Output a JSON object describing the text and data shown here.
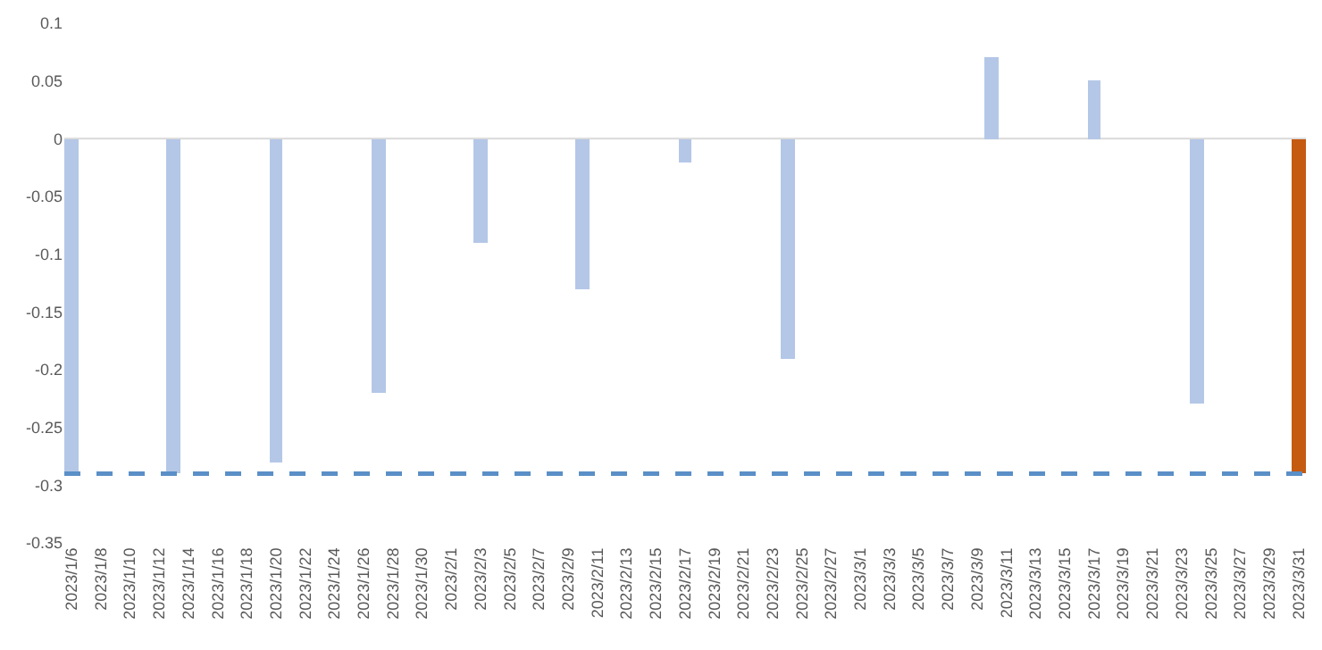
{
  "chart_data": {
    "type": "bar",
    "x": [
      "2023-01-06",
      "2023-01-13",
      "2023-01-20",
      "2023-01-27",
      "2023-02-03",
      "2023-02-10",
      "2023-02-17",
      "2023-02-24",
      "2023-03-10",
      "2023-03-17",
      "2023-03-24",
      "2023-03-31"
    ],
    "values": [
      -0.29,
      -0.29,
      -0.28,
      -0.22,
      -0.09,
      -0.13,
      -0.02,
      -0.19,
      0.07,
      0.05,
      -0.23,
      -0.29
    ],
    "colors": [
      "#b4c7e7",
      "#b4c7e7",
      "#b4c7e7",
      "#b4c7e7",
      "#b4c7e7",
      "#b4c7e7",
      "#b4c7e7",
      "#b4c7e7",
      "#b4c7e7",
      "#b4c7e7",
      "#b4c7e7",
      "#c55a11"
    ],
    "ylim": [
      -0.35,
      0.1
    ],
    "yticks": [
      0.1,
      0.05,
      0,
      -0.05,
      -0.1,
      -0.15,
      -0.2,
      -0.25,
      -0.3,
      -0.35
    ],
    "xlim": [
      "2023-01-05T12:00",
      "2023-03-31T12:00"
    ],
    "xticks": [
      {
        "value": "2023-01-06",
        "label": "2023/1/6"
      },
      {
        "value": "2023-01-08",
        "label": "2023/1/8"
      },
      {
        "value": "2023-01-10",
        "label": "2023/1/10"
      },
      {
        "value": "2023-01-12",
        "label": "2023/1/12"
      },
      {
        "value": "2023-01-14",
        "label": "2023/1/14"
      },
      {
        "value": "2023-01-16",
        "label": "2023/1/16"
      },
      {
        "value": "2023-01-18",
        "label": "2023/1/18"
      },
      {
        "value": "2023-01-20",
        "label": "2023/1/20"
      },
      {
        "value": "2023-01-22",
        "label": "2023/1/22"
      },
      {
        "value": "2023-01-24",
        "label": "2023/1/24"
      },
      {
        "value": "2023-01-26",
        "label": "2023/1/26"
      },
      {
        "value": "2023-01-28",
        "label": "2023/1/28"
      },
      {
        "value": "2023-01-30",
        "label": "2023/1/30"
      },
      {
        "value": "2023-02-01",
        "label": "2023/2/1"
      },
      {
        "value": "2023-02-03",
        "label": "2023/2/3"
      },
      {
        "value": "2023-02-05",
        "label": "2023/2/5"
      },
      {
        "value": "2023-02-07",
        "label": "2023/2/7"
      },
      {
        "value": "2023-02-09",
        "label": "2023/2/9"
      },
      {
        "value": "2023-02-11",
        "label": "2023/2/11"
      },
      {
        "value": "2023-02-13",
        "label": "2023/2/13"
      },
      {
        "value": "2023-02-15",
        "label": "2023/2/15"
      },
      {
        "value": "2023-02-17",
        "label": "2023/2/17"
      },
      {
        "value": "2023-02-19",
        "label": "2023/2/19"
      },
      {
        "value": "2023-02-21",
        "label": "2023/2/21"
      },
      {
        "value": "2023-02-23",
        "label": "2023/2/23"
      },
      {
        "value": "2023-02-25",
        "label": "2023/2/25"
      },
      {
        "value": "2023-02-27",
        "label": "2023/2/27"
      },
      {
        "value": "2023-03-01",
        "label": "2023/3/1"
      },
      {
        "value": "2023-03-03",
        "label": "2023/3/3"
      },
      {
        "value": "2023-03-05",
        "label": "2023/3/5"
      },
      {
        "value": "2023-03-07",
        "label": "2023/3/7"
      },
      {
        "value": "2023-03-09",
        "label": "2023/3/9"
      },
      {
        "value": "2023-03-11",
        "label": "2023/3/11"
      },
      {
        "value": "2023-03-13",
        "label": "2023/3/13"
      },
      {
        "value": "2023-03-15",
        "label": "2023/3/15"
      },
      {
        "value": "2023-03-17",
        "label": "2023/3/17"
      },
      {
        "value": "2023-03-19",
        "label": "2023/3/19"
      },
      {
        "value": "2023-03-21",
        "label": "2023/3/21"
      },
      {
        "value": "2023-03-23",
        "label": "2023/3/23"
      },
      {
        "value": "2023-03-25",
        "label": "2023/3/25"
      },
      {
        "value": "2023-03-27",
        "label": "2023/3/27"
      },
      {
        "value": "2023-03-29",
        "label": "2023/3/29"
      },
      {
        "value": "2023-03-31",
        "label": "2023/3/31"
      }
    ],
    "ref_lines": [
      {
        "axis": "y",
        "value": -0.29,
        "color": "#5b8fc7",
        "line_style": "dashed"
      }
    ]
  }
}
